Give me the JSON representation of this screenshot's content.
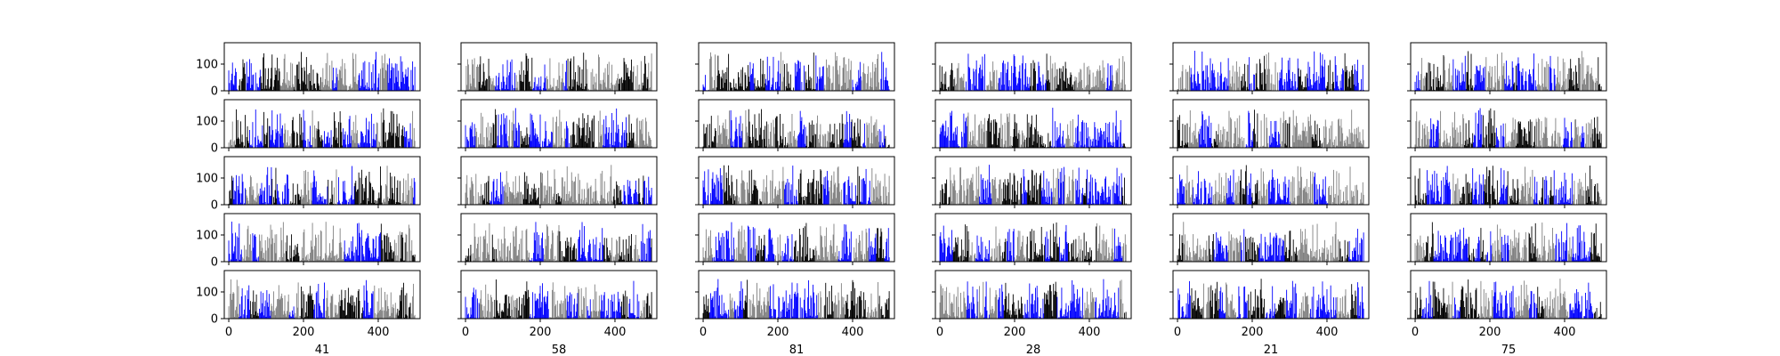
{
  "chart_data": {
    "type": "bar",
    "layout": {
      "rows": 5,
      "cols": 6
    },
    "xlim": [
      -12,
      512
    ],
    "ylim": [
      0,
      180
    ],
    "xticks": [
      0,
      200,
      400
    ],
    "yticks": [
      0,
      100
    ],
    "column_labels": [
      "41",
      "58",
      "81",
      "28",
      "21",
      "75"
    ],
    "series_colors": [
      "#000000",
      "#808080",
      "#0000ff"
    ],
    "bars_per_panel": 500,
    "value_range": [
      0,
      150
    ],
    "note": "Each of the 30 panels shows ~500 thin bars (x = 0..499) with heights between 0 and ~150, colored in runs of black, gray and blue."
  }
}
